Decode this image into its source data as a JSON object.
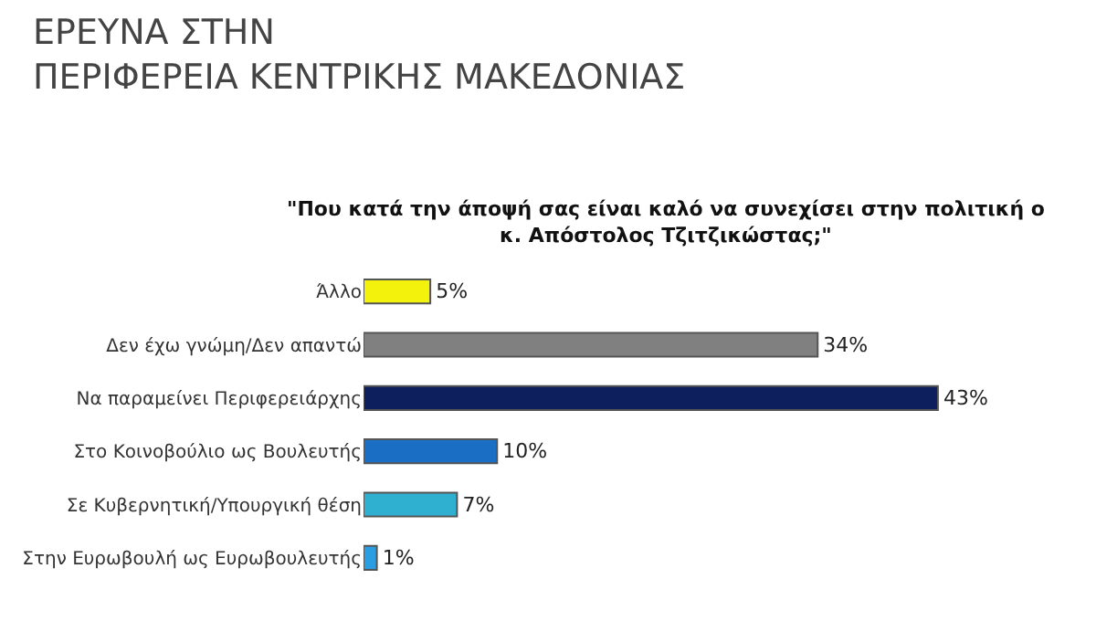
{
  "chart_data": {
    "type": "bar",
    "orientation": "horizontal",
    "title": "ΕΡΕΥΝΑ ΣΤΗΝ\nΠΕΡΙΦΕΡΕΙΑ ΚΕΝΤΡΙΚΗΣ ΜΑΚΕΔΟΝΙΑΣ",
    "subtitle": "\"Που κατά την άποψή σας είναι καλό να συνεχίσει στην πολιτική ο\nκ. Απόστολος Τζιτζικώστας;\"",
    "categories": [
      "Άλλο",
      "Δεν έχω γνώμη/Δεν απαντώ",
      "Να παραμείνει Περιφερειάρχης",
      "Στο Κοινοβούλιο ως Βουλευτής",
      "Σε Κυβερνητική/Υπουργική θέση",
      "Στην Ευρωβουλή ως Ευρωβουλευτής"
    ],
    "values": [
      5,
      34,
      43,
      10,
      7,
      1
    ],
    "value_labels": [
      "5%",
      "34%",
      "43%",
      "10%",
      "7%",
      "1%"
    ],
    "colors": [
      "#f2f20c",
      "#808080",
      "#0d1f5c",
      "#1a6fc4",
      "#30b0d0",
      "#2a9ee0"
    ]
  }
}
